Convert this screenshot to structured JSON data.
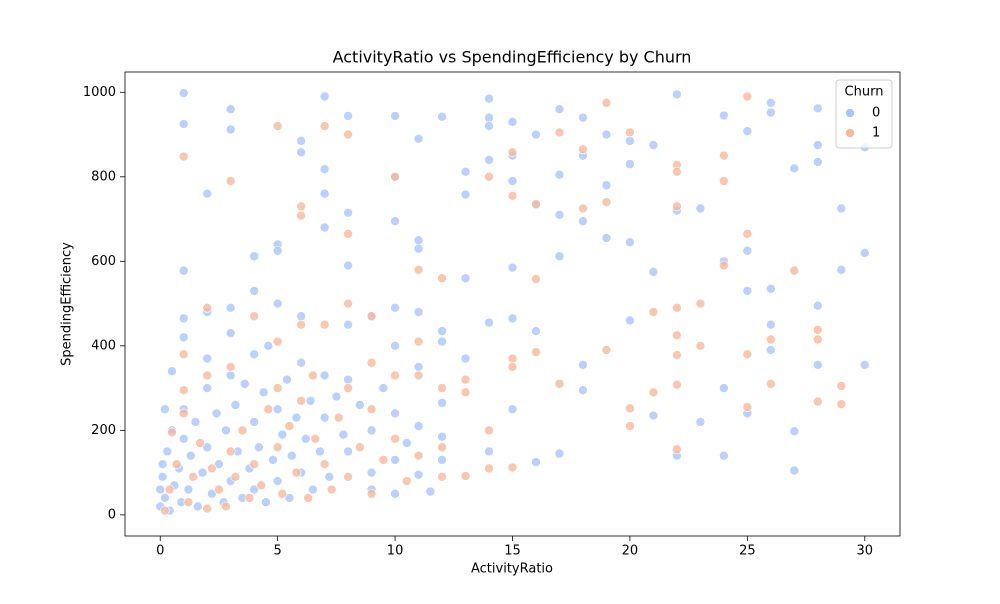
{
  "chart_data": {
    "type": "scatter",
    "title": "ActivityRatio vs SpendingEfficiency by Churn",
    "xlabel": "ActivityRatio",
    "ylabel": "SpendingEfficiency",
    "xlim": [
      -1.5,
      31.5
    ],
    "ylim": [
      -50,
      1048
    ],
    "xticks": [
      0,
      5,
      10,
      15,
      20,
      25,
      30
    ],
    "yticks": [
      0,
      200,
      400,
      600,
      800,
      1000
    ],
    "legend_title": "Churn",
    "legend": "upper right",
    "series": [
      {
        "name": "0",
        "color": "#aac6fd",
        "x": [
          1,
          1,
          3,
          3,
          7,
          8,
          10,
          11,
          12,
          14,
          14,
          14,
          15,
          16,
          17,
          18,
          19,
          20,
          21,
          22,
          24,
          25,
          26,
          26,
          28,
          28,
          30,
          2,
          6,
          6,
          7,
          7,
          8,
          10,
          10,
          11,
          11,
          13,
          13,
          14,
          15,
          15,
          15,
          16,
          17,
          17,
          17,
          18,
          18,
          19,
          19,
          20,
          20,
          21,
          22,
          23,
          24,
          25,
          25,
          26,
          26,
          27,
          27,
          27,
          28,
          28,
          28,
          29,
          29,
          30,
          30,
          1,
          4,
          5,
          5,
          8,
          7,
          13,
          12,
          12,
          11,
          12,
          13,
          14,
          14,
          15,
          15,
          16,
          16,
          17,
          18,
          18,
          20,
          21,
          22,
          23,
          24,
          24,
          25,
          26,
          9,
          10,
          10,
          11,
          12,
          11,
          10,
          9,
          8,
          6,
          5,
          4,
          3,
          2,
          1,
          1,
          0.5,
          0.2,
          0.1,
          0,
          0,
          0.1,
          0.2,
          0.3,
          0.4,
          0.5,
          0.6,
          0.8,
          0.9,
          1,
          1,
          1.2,
          1.3,
          1.5,
          1.6,
          1.8,
          2,
          2,
          2.2,
          2.4,
          2.5,
          2.7,
          2.8,
          3,
          3,
          3.2,
          3.3,
          3.5,
          3.6,
          3.8,
          4,
          4,
          4.2,
          4.4,
          4.5,
          4.6,
          4.8,
          5,
          5,
          5.2,
          5.4,
          5.5,
          5.6,
          5.8,
          6,
          6,
          6.2,
          6.4,
          6.5,
          6.8,
          7,
          7,
          7.2,
          7.5,
          7.8,
          8,
          8,
          8.5,
          9,
          9,
          9.5,
          10,
          10,
          10.5,
          11,
          11.5,
          12,
          4,
          3,
          2
        ],
        "values": [
          998,
          925,
          960,
          912,
          990,
          944,
          944,
          890,
          942,
          985,
          940,
          920,
          930,
          900,
          960,
          940,
          900,
          885,
          875,
          995,
          945,
          908,
          975,
          952,
          962,
          875,
          870,
          760,
          885,
          858,
          818,
          760,
          715,
          800,
          695,
          650,
          630,
          812,
          758,
          840,
          850,
          790,
          585,
          735,
          805,
          710,
          612,
          850,
          695,
          780,
          655,
          830,
          645,
          575,
          720,
          725,
          600,
          625,
          530,
          535,
          450,
          820,
          198,
          105,
          835,
          495,
          355,
          725,
          580,
          620,
          355,
          578,
          612,
          640,
          625,
          590,
          680,
          560,
          435,
          410,
          350,
          265,
          370,
          455,
          150,
          465,
          250,
          435,
          125,
          145,
          355,
          295,
          460,
          235,
          140,
          220,
          300,
          140,
          240,
          390,
          470,
          490,
          400,
          480,
          185,
          95,
          130,
          100,
          150,
          470,
          500,
          530,
          490,
          480,
          465,
          420,
          340,
          250,
          120,
          60,
          20,
          90,
          40,
          150,
          10,
          200,
          70,
          110,
          30,
          180,
          250,
          60,
          140,
          220,
          20,
          100,
          300,
          160,
          50,
          240,
          120,
          30,
          200,
          330,
          80,
          260,
          150,
          40,
          310,
          110,
          220,
          60,
          160,
          290,
          30,
          400,
          130,
          250,
          80,
          190,
          320,
          40,
          140,
          230,
          360,
          100,
          180,
          270,
          60,
          150,
          330,
          230,
          90,
          280,
          190,
          320,
          450,
          260,
          200,
          60,
          300,
          240,
          50,
          170,
          210,
          55,
          130,
          380,
          430,
          370
        ]
      },
      {
        "name": "1",
        "color": "#f7b89c",
        "x": [
          1,
          3,
          5,
          7,
          8,
          8,
          6,
          6,
          10,
          11,
          12,
          14,
          15,
          15,
          16,
          16,
          17,
          17,
          18,
          18,
          19,
          19,
          19,
          20,
          20,
          20,
          21,
          21,
          22,
          22,
          22,
          22,
          22,
          22,
          22,
          22,
          23,
          23,
          24,
          24,
          24,
          25,
          25,
          25,
          25,
          26,
          26,
          27,
          28,
          28,
          28,
          29,
          29,
          13,
          13,
          13,
          14,
          14,
          15,
          15,
          15,
          16,
          12,
          12,
          11,
          11,
          10,
          9,
          9,
          8,
          8,
          7,
          6,
          1,
          1,
          2,
          2,
          3,
          4,
          5,
          0.2,
          0.4,
          0.5,
          0.7,
          1,
          1.2,
          1.4,
          1.7,
          2,
          2.2,
          2.5,
          2.8,
          3,
          3.2,
          3.5,
          3.8,
          4,
          4.3,
          4.6,
          5,
          5.2,
          5.5,
          5.8,
          6,
          6.3,
          6.6,
          7,
          7.3,
          7.6,
          8,
          8.5,
          9,
          9,
          9.5,
          10,
          10.5,
          11,
          12,
          6.5,
          5
        ],
        "values": [
          848,
          790,
          920,
          920,
          900,
          665,
          730,
          708,
          800,
          580,
          560,
          800,
          858,
          755,
          735,
          558,
          905,
          310,
          865,
          725,
          975,
          740,
          390,
          905,
          252,
          210,
          480,
          290,
          828,
          812,
          730,
          490,
          425,
          378,
          308,
          155,
          500,
          400,
          850,
          790,
          590,
          990,
          665,
          380,
          255,
          415,
          310,
          578,
          438,
          415,
          268,
          305,
          262,
          320,
          290,
          92,
          200,
          110,
          370,
          350,
          112,
          385,
          160,
          90,
          410,
          330,
          180,
          470,
          360,
          500,
          300,
          450,
          450,
          380,
          295,
          490,
          330,
          350,
          470,
          410,
          10,
          60,
          195,
          120,
          240,
          30,
          90,
          170,
          15,
          110,
          60,
          20,
          150,
          90,
          200,
          40,
          120,
          70,
          250,
          160,
          50,
          210,
          100,
          270,
          40,
          180,
          120,
          60,
          230,
          90,
          160,
          50,
          250,
          130,
          330,
          80,
          140,
          300,
          330,
          300
        ]
      }
    ]
  }
}
